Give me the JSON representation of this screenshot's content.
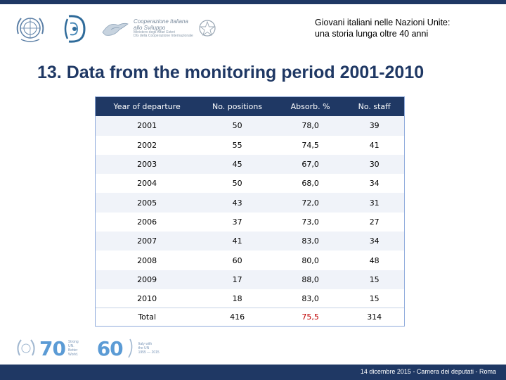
{
  "header": {
    "title_line1": "Giovani italiani nelle Nazioni Unite:",
    "title_line2": "una storia lunga oltre 40 anni",
    "coop_logo": {
      "line1": "Cooperazione Italiana",
      "line2": "allo Sviluppo",
      "line3": "Ministero degli Affari Esteri",
      "line4": "DG della Cooperazione Internazionale"
    }
  },
  "page_title": "13. Data from the monitoring period 2001-2010",
  "table": {
    "headers": [
      "Year of departure",
      "No. positions",
      "Absorb. %",
      "No. staff"
    ],
    "rows": [
      [
        "2001",
        "50",
        "78,0",
        "39"
      ],
      [
        "2002",
        "55",
        "74,5",
        "41"
      ],
      [
        "2003",
        "45",
        "67,0",
        "30"
      ],
      [
        "2004",
        "50",
        "68,0",
        "34"
      ],
      [
        "2005",
        "43",
        "72,0",
        "31"
      ],
      [
        "2006",
        "37",
        "73,0",
        "27"
      ],
      [
        "2007",
        "41",
        "83,0",
        "34"
      ],
      [
        "2008",
        "60",
        "80,0",
        "48"
      ],
      [
        "2009",
        "17",
        "88,0",
        "15"
      ],
      [
        "2010",
        "18",
        "83,0",
        "15"
      ]
    ],
    "total": [
      "Total",
      "416",
      "75,5",
      "314"
    ]
  },
  "footer_logos": {
    "un70_number": "70",
    "un70_line1": "Strong",
    "un70_line2": "UN.",
    "un70_line3": "Better",
    "un70_line4": "World.",
    "italy60_number": "60",
    "italy60_line1": "Italy with",
    "italy60_line2": "the UN",
    "italy60_line3": "1955 — 2015"
  },
  "footer": {
    "text": "14 dicembre 2015 - Camera dei deputati - Roma"
  },
  "colors": {
    "navy": "#1f3864",
    "accent_blue": "#5b9bd5",
    "total_red": "#c00000"
  }
}
